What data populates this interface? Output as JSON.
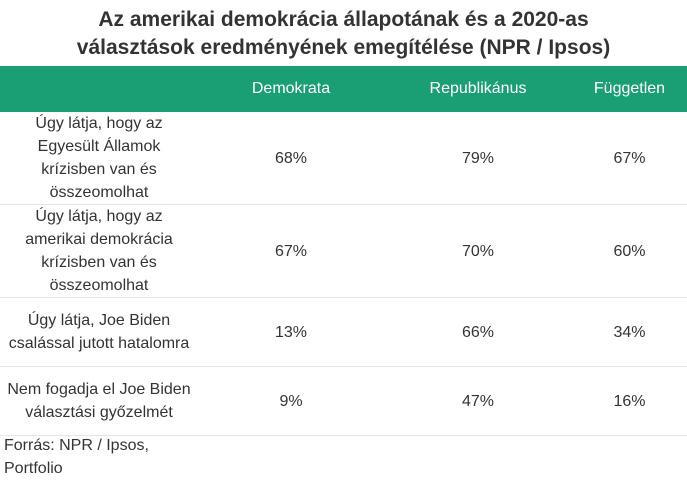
{
  "chart_data": {
    "type": "table",
    "title_lines": [
      "Az amerikai demokrácia állapotának és a 2020-as",
      "választások eredményének emegítélése (NPR / Ipsos)"
    ],
    "columns": [
      "Demokrata",
      "Republikánus",
      "Független"
    ],
    "rows": [
      {
        "label": "Úgy látja, hogy az Egyesült Államok krízisben van és összeomolhat",
        "values": [
          "68%",
          "79%",
          "67%"
        ]
      },
      {
        "label": "Úgy látja, hogy az amerikai demokrácia krízisben van és összeomolhat",
        "values": [
          "67%",
          "70%",
          "60%"
        ]
      },
      {
        "label": "Úgy látja, Joe Biden csalással jutott hatalomra",
        "values": [
          "13%",
          "66%",
          "34%"
        ]
      },
      {
        "label": "Nem fogadja el Joe Biden választási győzelmét",
        "values": [
          "9%",
          "47%",
          "16%"
        ]
      }
    ],
    "source": "Forrás: NPR / Ipsos, Portfolio",
    "header_color": "#1a9e73"
  }
}
